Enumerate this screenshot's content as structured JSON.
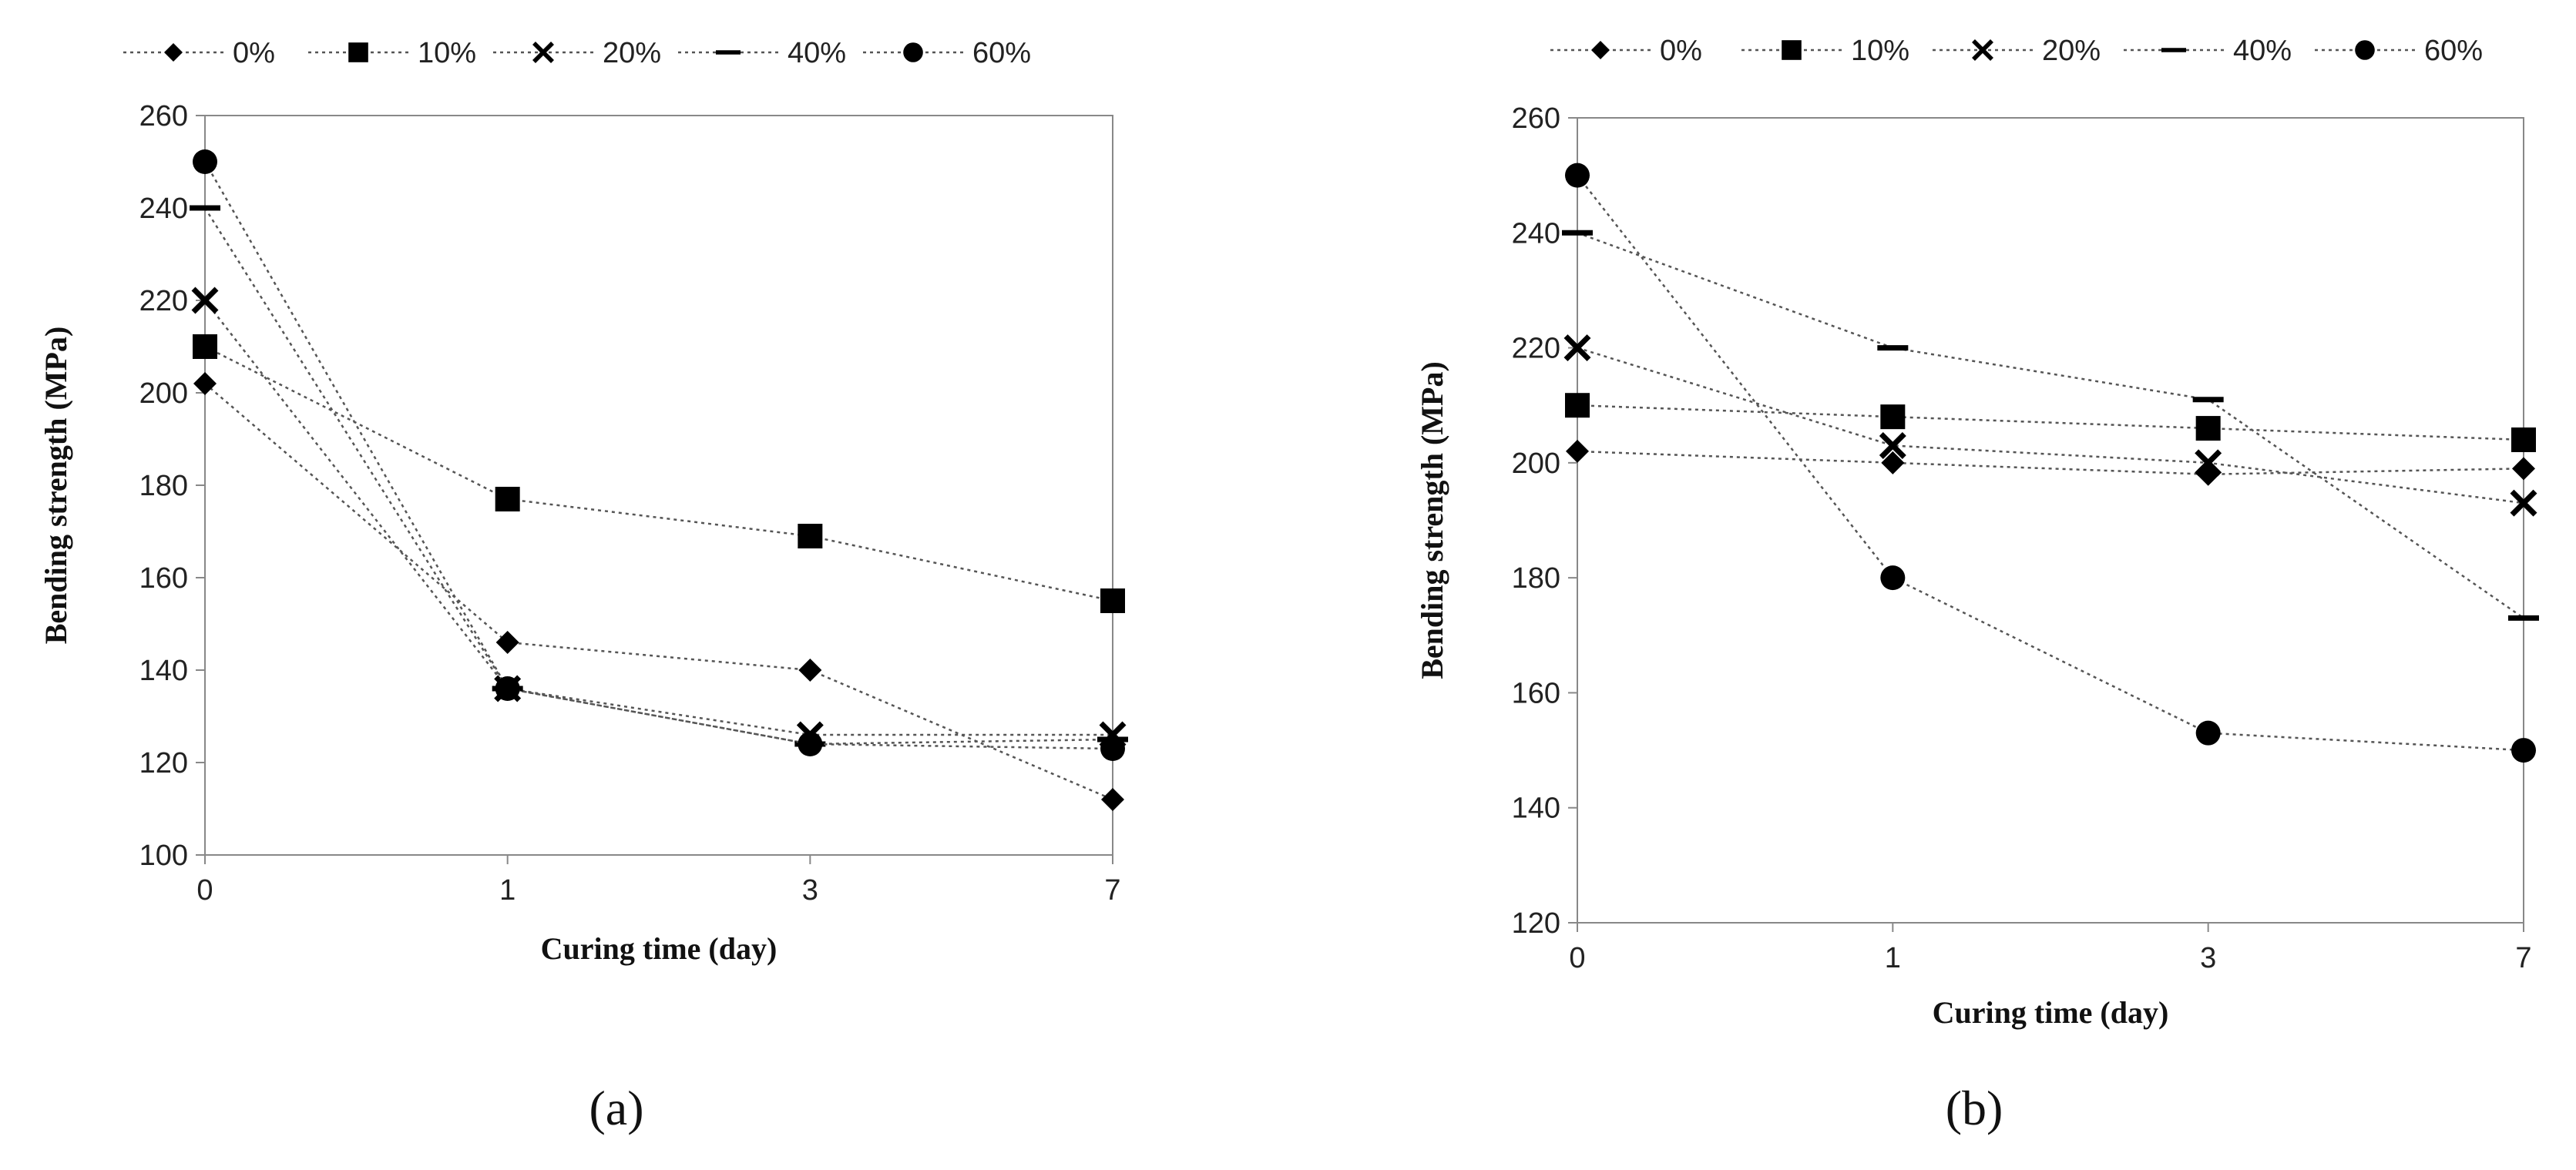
{
  "chart_data": [
    {
      "type": "line",
      "panel_label": "(a)",
      "xlabel": "Curing time (day)",
      "ylabel": "Bending strength (MPa)",
      "categories": [
        "0",
        "1",
        "3",
        "7"
      ],
      "ylim": [
        100,
        260
      ],
      "yticks": [
        100,
        120,
        140,
        160,
        180,
        200,
        220,
        240,
        260
      ],
      "legend_position": "top",
      "series": [
        {
          "name": "0%",
          "marker": "diamond",
          "values": [
            202,
            146,
            140,
            112
          ]
        },
        {
          "name": "10%",
          "marker": "square",
          "values": [
            210,
            177,
            169,
            155
          ]
        },
        {
          "name": "20%",
          "marker": "x",
          "values": [
            220,
            136,
            126,
            126
          ]
        },
        {
          "name": "40%",
          "marker": "dash",
          "values": [
            240,
            136,
            124,
            125
          ]
        },
        {
          "name": "60%",
          "marker": "circle",
          "values": [
            250,
            136,
            124,
            123
          ]
        }
      ]
    },
    {
      "type": "line",
      "panel_label": "(b)",
      "xlabel": "Curing time (day)",
      "ylabel": "Bending strength (MPa)",
      "categories": [
        "0",
        "1",
        "3",
        "7"
      ],
      "ylim": [
        120,
        260
      ],
      "yticks": [
        120,
        140,
        160,
        180,
        200,
        220,
        240,
        260
      ],
      "legend_position": "top",
      "series": [
        {
          "name": "0%",
          "marker": "diamond",
          "values": [
            202,
            200,
            198,
            199
          ]
        },
        {
          "name": "10%",
          "marker": "square",
          "values": [
            210,
            208,
            206,
            204
          ]
        },
        {
          "name": "20%",
          "marker": "x",
          "values": [
            220,
            203,
            200,
            193
          ]
        },
        {
          "name": "40%",
          "marker": "dash",
          "values": [
            240,
            220,
            211,
            173
          ]
        },
        {
          "name": "60%",
          "marker": "circle",
          "values": [
            250,
            180,
            153,
            150
          ]
        }
      ]
    }
  ]
}
